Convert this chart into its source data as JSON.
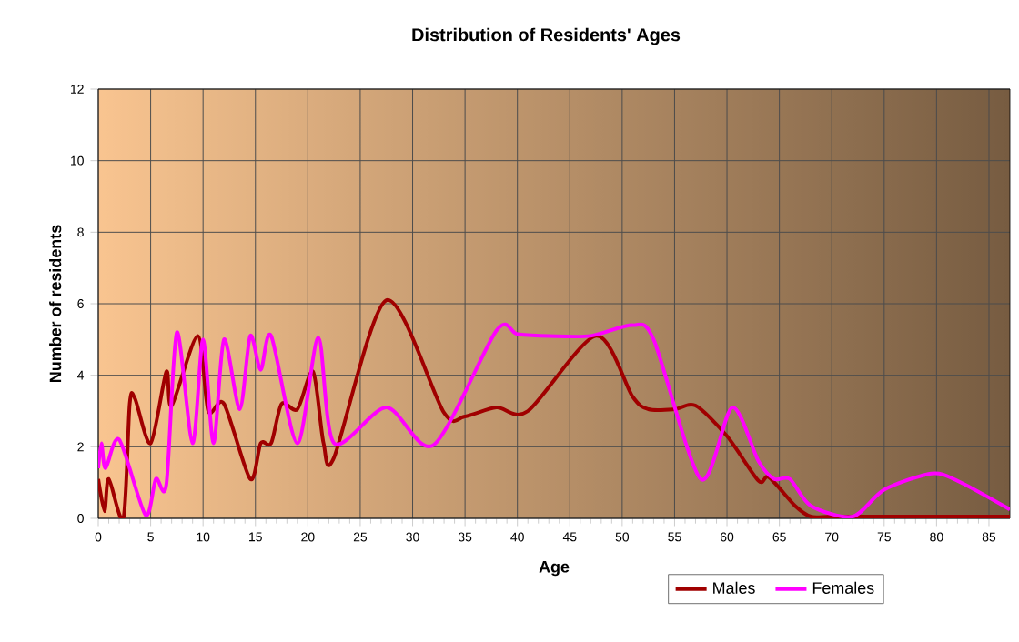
{
  "chart_data": {
    "type": "line",
    "title": "Distribution of Residents' Ages",
    "xlabel": "Age",
    "ylabel": "Number of residents",
    "xlim": [
      0,
      87
    ],
    "xticks": [
      0,
      5,
      10,
      15,
      20,
      25,
      30,
      35,
      40,
      45,
      50,
      55,
      60,
      65,
      70,
      75,
      80,
      85
    ],
    "ylim": [
      0,
      12
    ],
    "yticks": [
      0,
      2,
      4,
      6,
      8,
      10,
      12
    ],
    "grid": true,
    "legend": "bottom right",
    "marker": "none",
    "line_style": "solid",
    "series": [
      {
        "name": "Males",
        "color": "#a00000",
        "x": [
          0,
          0.6,
          1,
          2.4,
          3,
          3.5,
          5,
          6.5,
          7,
          9.5,
          10.5,
          12,
          14.5,
          15.5,
          16.5,
          17.5,
          19,
          20.5,
          21.5,
          22.5,
          27.5,
          33,
          35,
          38,
          41,
          47.5,
          51,
          52.5,
          55,
          57,
          60,
          63,
          64,
          66.5,
          68,
          70,
          75,
          80,
          87
        ],
        "values": [
          1.1,
          0.2,
          1.1,
          0,
          3.2,
          3.35,
          2.1,
          4.1,
          3.15,
          5.1,
          3.0,
          3.2,
          1.1,
          2.1,
          2.1,
          3.2,
          3.05,
          4.1,
          2.1,
          1.7,
          6.1,
          2.95,
          2.85,
          3.1,
          3.0,
          5.1,
          3.4,
          3.05,
          3.05,
          3.15,
          2.3,
          1.05,
          1.15,
          0.35,
          0.05,
          0.05,
          0.05,
          0.05,
          0.05
        ]
      },
      {
        "name": "Females",
        "color": "#ff00ff",
        "x": [
          0,
          0.3,
          0.7,
          2,
          4.5,
          5.5,
          6.5,
          7.5,
          9,
          10,
          11,
          12,
          13.5,
          14.5,
          15.5,
          16.5,
          19,
          21,
          22.5,
          27.5,
          32,
          38,
          40,
          43,
          47,
          51,
          53,
          57.5,
          60.5,
          63,
          64.5,
          66,
          68,
          72,
          75,
          79.5,
          82,
          87
        ],
        "values": [
          1.4,
          2.1,
          1.4,
          2.2,
          0.1,
          1.1,
          0.95,
          5.2,
          2.1,
          5.0,
          2.1,
          5.0,
          3.05,
          5.1,
          4.15,
          5.1,
          2.1,
          5.05,
          2.1,
          3.1,
          2.05,
          5.25,
          5.15,
          5.1,
          5.1,
          5.4,
          5.0,
          1.1,
          3.1,
          1.6,
          1.1,
          1.1,
          0.35,
          0.05,
          0.8,
          1.25,
          1.05,
          0.25
        ]
      }
    ]
  }
}
